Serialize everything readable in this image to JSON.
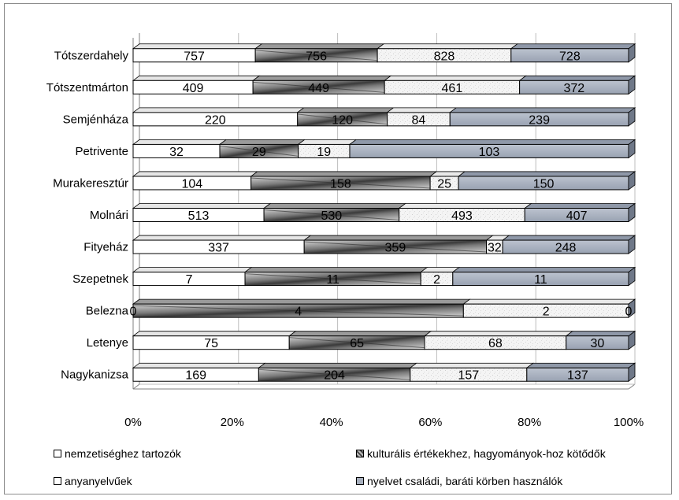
{
  "chart_data": {
    "type": "bar",
    "orientation": "horizontal",
    "stacking": "percent",
    "title": "",
    "xlabel": "",
    "ylabel": "",
    "xlim": [
      0,
      100
    ],
    "x_ticks": [
      "0%",
      "20%",
      "40%",
      "60%",
      "80%",
      "100%"
    ],
    "grid": true,
    "legend_position": "bottom",
    "categories": [
      "Tótszerdahely",
      "Tótszentmárton",
      "Semjénháza",
      "Petrivente",
      "Murakeresztúr",
      "Molnári",
      "Fityeház",
      "Szepetnek",
      "Belezna",
      "Letenye",
      "Nagykanizsa"
    ],
    "series": [
      {
        "name": "nemzetiséghez tartozók",
        "values": [
          757,
          409,
          220,
          32,
          104,
          513,
          337,
          7,
          0,
          75,
          169
        ],
        "color": "#ffffff"
      },
      {
        "name": "kulturális értékekhez, hagyományok-hoz kötődők",
        "values": [
          756,
          449,
          120,
          29,
          158,
          530,
          359,
          11,
          4,
          65,
          204
        ],
        "color": "#8a8a8a"
      },
      {
        "name": "anyanyelvűek",
        "values": [
          828,
          461,
          84,
          19,
          25,
          493,
          32,
          2,
          2,
          68,
          157
        ],
        "color": "#f2f2f2"
      },
      {
        "name": "nyelvet családi, baráti körben használók",
        "values": [
          728,
          372,
          239,
          103,
          150,
          407,
          248,
          11,
          0,
          30,
          137
        ],
        "color": "#a7afbd"
      }
    ]
  }
}
